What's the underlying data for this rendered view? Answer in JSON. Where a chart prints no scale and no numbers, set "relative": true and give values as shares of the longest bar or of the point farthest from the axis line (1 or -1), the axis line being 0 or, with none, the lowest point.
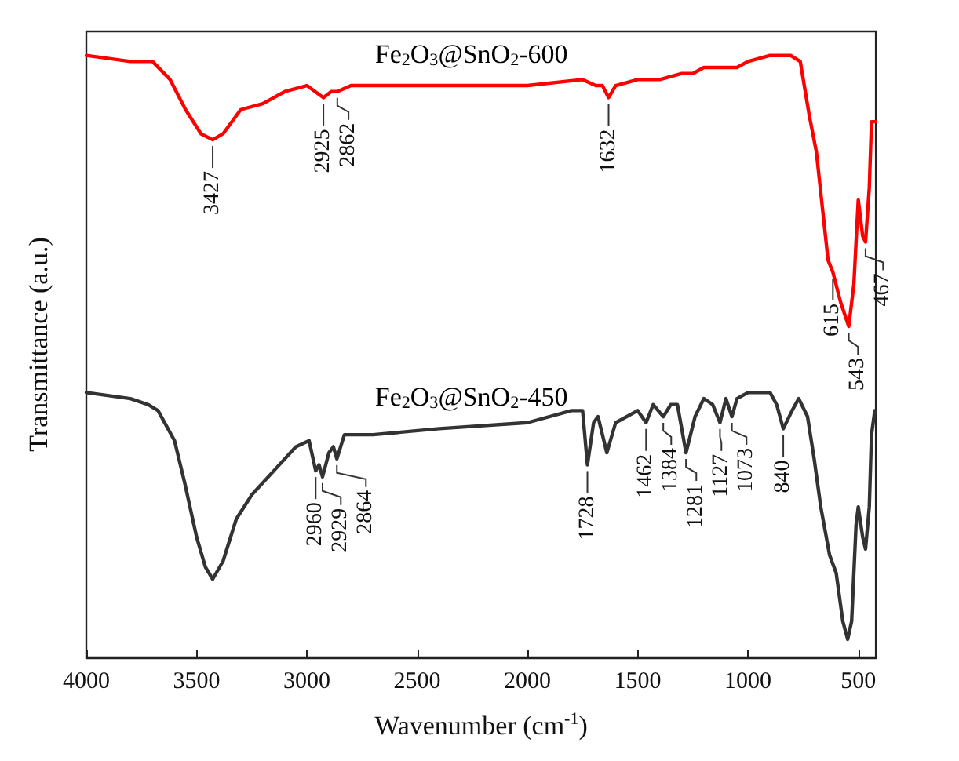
{
  "chart_data": {
    "type": "line",
    "relative": true,
    "xlabel": "Wavenumber (cm$^{-1}$)",
    "ylabel": "Transmittance (a.u.)",
    "xlim": [
      4000,
      420
    ],
    "xticks": [
      4000,
      3500,
      3000,
      2500,
      2000,
      1500,
      1000,
      500
    ],
    "grid": false,
    "legend": false,
    "marker": "none",
    "line_style": "solid",
    "series": [
      {
        "name": "Fe$_{2}$O$_{3}$@SnO$_{2}$-600",
        "color": "#ff0000",
        "x": [
          4000,
          3800,
          3700,
          3620,
          3550,
          3480,
          3427,
          3380,
          3300,
          3200,
          3100,
          3000,
          2925,
          2890,
          2862,
          2800,
          2500,
          2000,
          1750,
          1690,
          1660,
          1632,
          1600,
          1500,
          1400,
          1300,
          1250,
          1200,
          1100,
          1050,
          1000,
          900,
          807,
          763,
          722,
          690,
          637,
          615,
          580,
          543,
          520,
          500,
          480,
          467,
          450,
          440,
          430,
          420
        ],
        "values": [
          1.0,
          0.99,
          0.99,
          0.96,
          0.91,
          0.87,
          0.86,
          0.87,
          0.91,
          0.92,
          0.94,
          0.95,
          0.93,
          0.94,
          0.94,
          0.95,
          0.95,
          0.95,
          0.96,
          0.95,
          0.95,
          0.93,
          0.95,
          0.96,
          0.96,
          0.97,
          0.97,
          0.98,
          0.98,
          0.98,
          0.99,
          1.0,
          1.0,
          0.99,
          0.9,
          0.84,
          0.66,
          0.64,
          0.59,
          0.55,
          0.62,
          0.76,
          0.7,
          0.69,
          0.78,
          0.89,
          0.89,
          0.89
        ]
      },
      {
        "name": "Fe$_{2}$O$_{3}$@SnO$_{2}$-450",
        "color": "#333333",
        "x": [
          4000,
          3800,
          3720,
          3675,
          3600,
          3554,
          3500,
          3460,
          3427,
          3380,
          3320,
          3250,
          3150,
          3050,
          2990,
          2960,
          2945,
          2929,
          2900,
          2880,
          2864,
          2830,
          2700,
          2400,
          2000,
          1800,
          1750,
          1728,
          1700,
          1680,
          1640,
          1600,
          1500,
          1462,
          1430,
          1384,
          1350,
          1320,
          1281,
          1240,
          1200,
          1160,
          1127,
          1100,
          1073,
          1050,
          1000,
          900,
          870,
          840,
          800,
          770,
          730,
          700,
          670,
          630,
          600,
          570,
          548,
          530,
          510,
          500,
          480,
          467,
          450,
          440,
          425
        ],
        "values": [
          0.44,
          0.43,
          0.42,
          0.41,
          0.36,
          0.29,
          0.2,
          0.15,
          0.13,
          0.16,
          0.23,
          0.27,
          0.31,
          0.35,
          0.36,
          0.31,
          0.32,
          0.3,
          0.34,
          0.35,
          0.33,
          0.37,
          0.37,
          0.38,
          0.39,
          0.41,
          0.41,
          0.32,
          0.39,
          0.4,
          0.34,
          0.39,
          0.41,
          0.39,
          0.42,
          0.4,
          0.42,
          0.42,
          0.34,
          0.4,
          0.43,
          0.42,
          0.39,
          0.43,
          0.4,
          0.43,
          0.44,
          0.44,
          0.42,
          0.38,
          0.41,
          0.43,
          0.4,
          0.33,
          0.25,
          0.17,
          0.14,
          0.06,
          0.03,
          0.06,
          0.22,
          0.25,
          0.2,
          0.18,
          0.25,
          0.37,
          0.41
        ]
      }
    ],
    "annotations": [
      {
        "text": "3427",
        "x": 3427,
        "y": 0.86
      },
      {
        "text": "2925",
        "x": 2925,
        "y": 0.93
      },
      {
        "text": "2862",
        "x": 2862,
        "y": 0.94
      },
      {
        "text": "1632",
        "x": 1632,
        "y": 0.93
      },
      {
        "text": "615",
        "x": 615,
        "y": 0.64
      },
      {
        "text": "543",
        "x": 543,
        "y": 0.55
      },
      {
        "text": "467",
        "x": 467,
        "y": 0.69
      },
      {
        "text": "2960",
        "x": 2960,
        "y": 0.31
      },
      {
        "text": "2929",
        "x": 2929,
        "y": 0.3
      },
      {
        "text": "2864",
        "x": 2864,
        "y": 0.33
      },
      {
        "text": "1728",
        "x": 1728,
        "y": 0.32
      },
      {
        "text": "1462",
        "x": 1462,
        "y": 0.39
      },
      {
        "text": "1384",
        "x": 1384,
        "y": 0.4
      },
      {
        "text": "1281",
        "x": 1281,
        "y": 0.34
      },
      {
        "text": "1127",
        "x": 1127,
        "y": 0.39
      },
      {
        "text": "1073",
        "x": 1073,
        "y": 0.4
      },
      {
        "text": "840",
        "x": 840,
        "y": 0.38
      }
    ]
  }
}
